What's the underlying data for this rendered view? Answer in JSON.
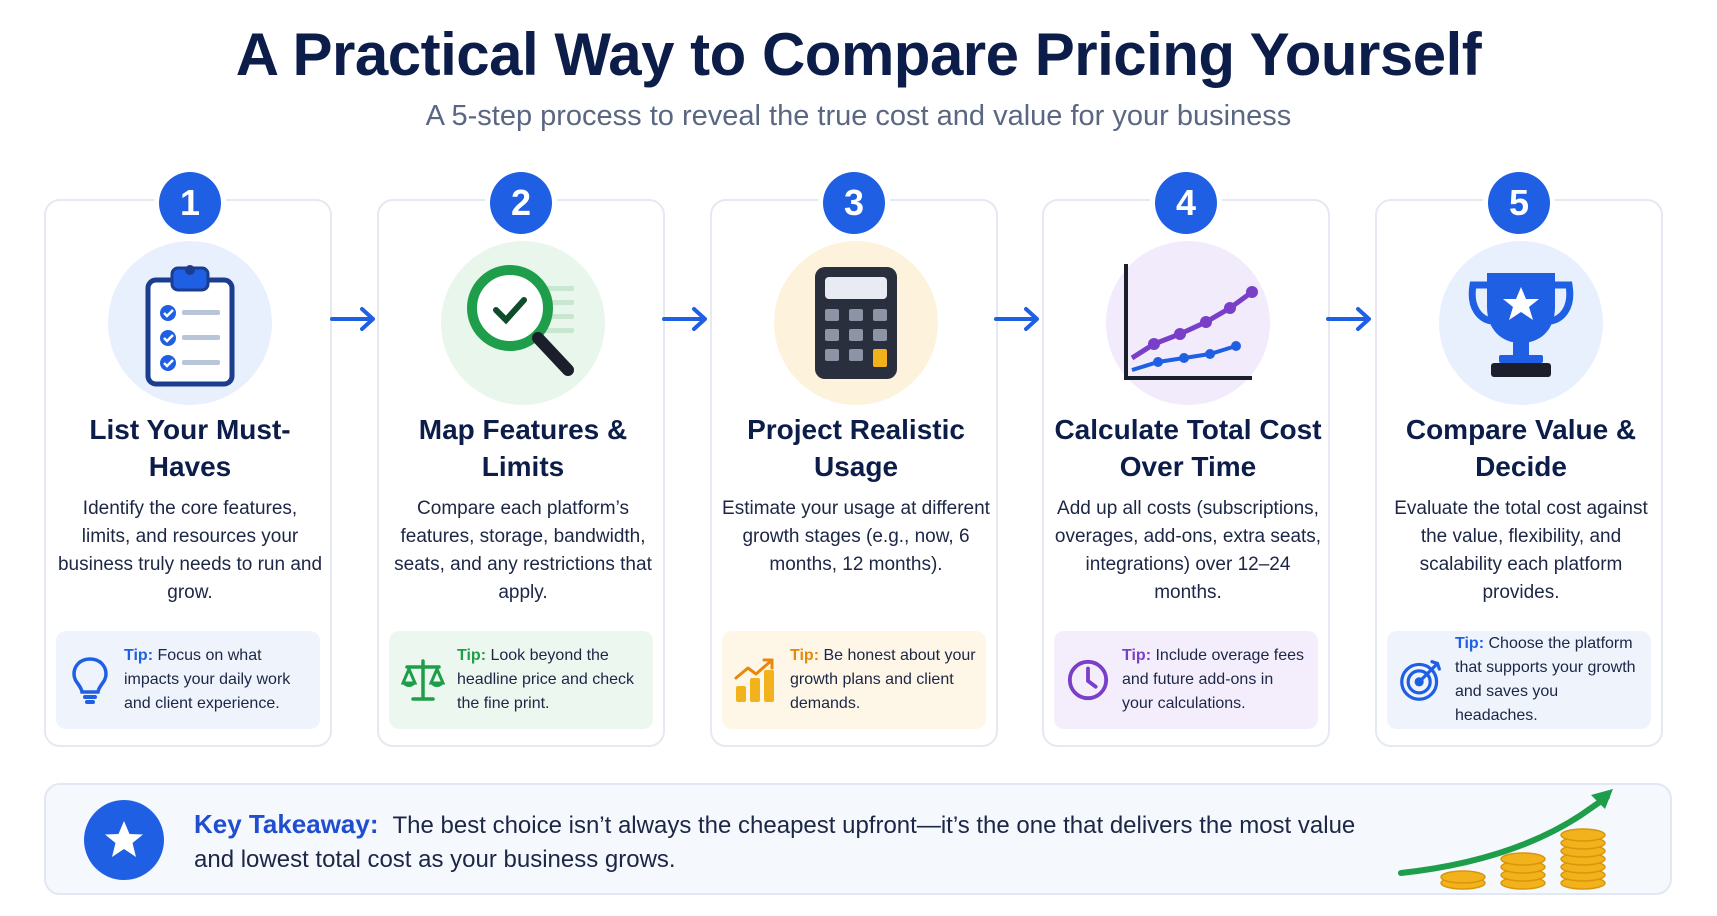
{
  "header": {
    "title": "A Practical Way to Compare Pricing Yourself",
    "subtitle": "A 5-step process to reveal the true cost and value for your business"
  },
  "steps": [
    {
      "number": "1",
      "title": "List Your Must-Haves",
      "description": "Identify the core features, limits, and resources your business truly needs to run and grow.",
      "icon": "clipboard-checklist-icon",
      "tip_label": "Tip:",
      "tip_text": "Focus on what impacts your daily work and client experience.",
      "tip_icon": "lightbulb-icon",
      "accent": "#1f5fe3"
    },
    {
      "number": "2",
      "title": "Map Features & Limits",
      "description": "Compare each platform’s features, storage, bandwidth, seats, and any restrictions that apply.",
      "icon": "magnifier-check-icon",
      "tip_label": "Tip:",
      "tip_text": "Look beyond the headline price and check the fine print.",
      "tip_icon": "scales-icon",
      "accent": "#1e9e4a"
    },
    {
      "number": "3",
      "title": "Project Realistic Usage",
      "description": "Estimate your usage at different growth stages (e.g., now, 6 months, 12 months).",
      "icon": "calculator-icon",
      "tip_label": "Tip:",
      "tip_text": "Be honest about your growth plans and client demands.",
      "tip_icon": "growth-bars-icon",
      "accent": "#e8870a"
    },
    {
      "number": "4",
      "title": "Calculate Total Cost Over Time",
      "description": "Add up all costs (subscriptions, overages, add-ons, extra seats, integrations) over 12–24 months.",
      "icon": "line-graph-icon",
      "tip_label": "Tip:",
      "tip_text": "Include overage fees and future add-ons in your calculations.",
      "tip_icon": "clock-icon",
      "accent": "#7a3fc9"
    },
    {
      "number": "5",
      "title": "Compare Value & Decide",
      "description": "Evaluate the total cost against the value, flexibility, and scalability each platform provides.",
      "icon": "trophy-icon",
      "tip_label": "Tip:",
      "tip_text": "Choose the platform that supports your growth and saves you headaches.",
      "tip_icon": "target-icon",
      "accent": "#1f5fe3"
    }
  ],
  "takeaway": {
    "label": "Key Takeaway:",
    "text": "The best choice isn’t always the cheapest upfront—it’s the one that delivers the most value and lowest total cost as your business grows.",
    "icon": "star-icon"
  },
  "colors": {
    "primary": "#1f5fe3",
    "title": "#0d1d4a",
    "green": "#1e9e4a",
    "amber": "#f2b21b",
    "purple": "#7a3fc9"
  }
}
